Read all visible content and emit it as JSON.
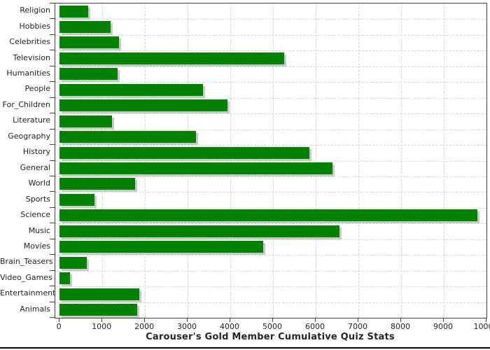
{
  "chart_data": {
    "type": "bar",
    "orientation": "horizontal",
    "title": "Carouser's Gold Member Cumulative Quiz Stats",
    "categories": [
      "Religion",
      "Hobbies",
      "Celebrities",
      "Television",
      "Humanities",
      "People",
      "For_Children",
      "Literature",
      "Geography",
      "History",
      "General",
      "World",
      "Sports",
      "Science",
      "Music",
      "Movies",
      "Brain_Teasers",
      "Video_Games",
      "Entertainment",
      "Animals"
    ],
    "values": [
      670,
      1200,
      1400,
      5260,
      1360,
      3360,
      3930,
      1230,
      3200,
      5860,
      6400,
      1770,
      825,
      9790,
      6550,
      4770,
      630,
      250,
      1870,
      1820
    ],
    "x_ticks": [
      0,
      1000,
      2000,
      3000,
      4000,
      5000,
      6000,
      7000,
      8000,
      9000,
      10000
    ],
    "xlim": [
      -100,
      10000
    ],
    "xlabel": "",
    "ylabel": "",
    "grid": "dashed-both-axes",
    "legend": "none",
    "bar_color": "#008000",
    "shadow_color": "#c9c9c9",
    "grid_color": "#d4d4d4",
    "border_color": "#404040"
  }
}
